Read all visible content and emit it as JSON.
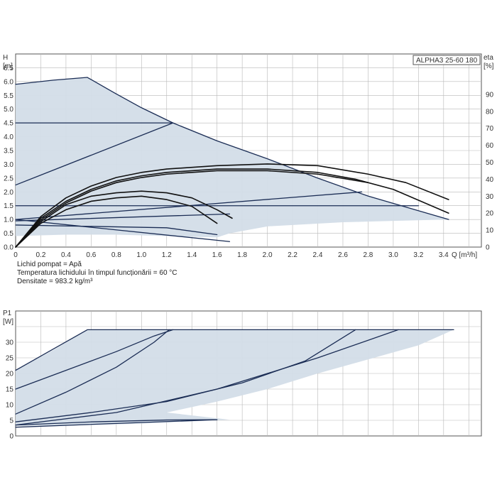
{
  "model_label": "ALPHA3 25-60 180",
  "notes": {
    "liquid": "Lichid pompat = Apă",
    "temperature": "Temperatura lichidului în timpul funcționării = 60 °C",
    "density": "Densitate = 983.2 kg/m³"
  },
  "chart_data": [
    {
      "type": "line",
      "title": "",
      "xlabel": "Q [m³/h]",
      "ylabel_left": [
        "H",
        "[m]"
      ],
      "ylabel_right": [
        "eta",
        "[%]"
      ],
      "xlim": [
        0,
        3.7
      ],
      "ylim": [
        0,
        7
      ],
      "ylim_right": [
        0,
        100
      ],
      "x_ticks": [
        "0",
        "0.2",
        "0.4",
        "0.6",
        "0.8",
        "1.0",
        "1.2",
        "1.4",
        "1.6",
        "1.8",
        "2.0",
        "2.2",
        "2.4",
        "2.6",
        "2.8",
        "3.0",
        "3.2",
        "3.4"
      ],
      "y_ticks": [
        "0.0",
        "0.5",
        "1.0",
        "1.5",
        "2.0",
        "2.5",
        "3.0",
        "3.5",
        "4.0",
        "4.5",
        "5.0",
        "5.5",
        "6.0",
        "6.5"
      ],
      "y_ticks_right": [
        "0",
        "10",
        "20",
        "30",
        "40",
        "50",
        "60",
        "70",
        "80",
        "90"
      ],
      "grid": true,
      "operating_area": [
        [
          0,
          0
        ],
        [
          0,
          5.9
        ],
        [
          0.3,
          6.05
        ],
        [
          0.57,
          6.15
        ],
        [
          0.8,
          5.55
        ],
        [
          1.0,
          5.05
        ],
        [
          1.25,
          4.5
        ],
        [
          1.6,
          3.85
        ],
        [
          2.0,
          3.2
        ],
        [
          2.4,
          2.5
        ],
        [
          2.8,
          1.85
        ],
        [
          3.1,
          1.45
        ],
        [
          3.44,
          1.0
        ],
        [
          3.0,
          0.95
        ],
        [
          2.6,
          0.9
        ],
        [
          2.0,
          0.75
        ],
        [
          1.7,
          0.5
        ],
        [
          1.6,
          0.35
        ],
        [
          1.2,
          0.4
        ],
        [
          0.8,
          0.45
        ],
        [
          0.4,
          0.45
        ],
        [
          0,
          0.4
        ]
      ],
      "series": [
        {
          "role": "max-curve",
          "color": "#1b2d55",
          "x": [
            0,
            0.3,
            0.57,
            0.8,
            1.0,
            1.25,
            1.6,
            2.0,
            2.4,
            2.8,
            3.1,
            3.44
          ],
          "y": [
            5.9,
            6.05,
            6.15,
            5.55,
            5.05,
            4.5,
            3.85,
            3.2,
            2.5,
            1.85,
            1.45,
            1.0
          ]
        },
        {
          "role": "const-pressure",
          "color": "#1b2d55",
          "x": [
            0,
            1.25
          ],
          "y": [
            4.5,
            4.5
          ]
        },
        {
          "role": "prop-pressure",
          "color": "#1b2d55",
          "x": [
            0,
            1.25
          ],
          "y": [
            2.25,
            4.5
          ]
        },
        {
          "role": "const-pressure",
          "color": "#1b2d55",
          "x": [
            0,
            3.2
          ],
          "y": [
            1.5,
            1.5
          ]
        },
        {
          "role": "prop-pressure",
          "color": "#1b2d55",
          "x": [
            0,
            2.75
          ],
          "y": [
            1.0,
            2.0
          ]
        },
        {
          "role": "prop-pressure",
          "color": "#1b2d55",
          "x": [
            0,
            1.7
          ],
          "y": [
            0.95,
            1.2
          ]
        },
        {
          "role": "min-curve",
          "color": "#1b2d55",
          "x": [
            0,
            1.2,
            1.6
          ],
          "y": [
            0.8,
            0.7,
            0.45
          ]
        },
        {
          "role": "min-curve",
          "color": "#1b2d55",
          "x": [
            0,
            1.7
          ],
          "y": [
            1.0,
            0.2
          ]
        },
        {
          "role": "efficiency",
          "color": "#111111",
          "x": [
            0,
            0.2,
            0.4,
            0.6,
            0.8,
            1.0,
            1.2,
            1.6,
            2.0,
            2.4,
            2.8,
            3.1,
            3.44
          ],
          "y": [
            0,
            18,
            29,
            36,
            41,
            44,
            46,
            48,
            49,
            48,
            43,
            38,
            28
          ]
        },
        {
          "role": "efficiency",
          "color": "#111111",
          "x": [
            0,
            0.2,
            0.4,
            0.6,
            0.8,
            1.0,
            1.2,
            1.6,
            2.0,
            2.4,
            2.7,
            3.0,
            3.44
          ],
          "y": [
            0,
            17,
            27,
            34,
            39,
            42,
            44,
            46,
            46,
            44,
            40,
            34,
            20
          ]
        },
        {
          "role": "efficiency",
          "color": "#111111",
          "x": [
            0,
            0.2,
            0.4,
            0.6,
            0.8,
            1.0,
            1.2,
            1.6,
            2.0,
            2.4,
            2.8
          ],
          "y": [
            0,
            16,
            26,
            33,
            38,
            41,
            43,
            45,
            45,
            43,
            38
          ]
        },
        {
          "role": "efficiency",
          "color": "#111111",
          "x": [
            0,
            0.2,
            0.4,
            0.6,
            0.8,
            1.0,
            1.2,
            1.4,
            1.6,
            1.72
          ],
          "y": [
            0,
            15,
            25,
            30,
            32,
            33,
            32,
            29,
            22,
            17
          ]
        },
        {
          "role": "efficiency",
          "color": "#111111",
          "x": [
            0,
            0.2,
            0.4,
            0.6,
            0.8,
            1.0,
            1.2,
            1.4,
            1.6
          ],
          "y": [
            0,
            14,
            22,
            27,
            29,
            30,
            28,
            24,
            14
          ]
        }
      ]
    },
    {
      "type": "line",
      "title": "",
      "xlabel": "",
      "ylabel_left": [
        "P1",
        "[W]"
      ],
      "xlim": [
        0,
        3.7
      ],
      "ylim": [
        0,
        40
      ],
      "x_ticks": [],
      "y_ticks": [
        "0",
        "5",
        "10",
        "15",
        "20",
        "25",
        "30"
      ],
      "grid": true,
      "operating_area": [
        [
          0,
          3.2
        ],
        [
          0,
          21
        ],
        [
          0.3,
          27.5
        ],
        [
          0.57,
          34
        ],
        [
          3.48,
          34
        ],
        [
          3.2,
          29
        ],
        [
          2.8,
          24.5
        ],
        [
          2.4,
          20
        ],
        [
          2.0,
          15
        ],
        [
          1.6,
          11
        ],
        [
          1.2,
          7.5
        ],
        [
          1.7,
          5.2
        ],
        [
          0.9,
          3.8
        ],
        [
          0.4,
          3.3
        ]
      ],
      "series": [
        {
          "role": "max-curve",
          "color": "#1b2d55",
          "x": [
            0,
            0.57,
            3.48
          ],
          "y": [
            21,
            34,
            34
          ]
        },
        {
          "role": "curve",
          "color": "#1b2d55",
          "x": [
            0,
            0.4,
            0.8,
            1.1,
            1.25
          ],
          "y": [
            15,
            21,
            27,
            32,
            34
          ]
        },
        {
          "role": "curve",
          "color": "#1b2d55",
          "x": [
            0,
            0.4,
            0.8,
            1.1,
            1.22
          ],
          "y": [
            7,
            14,
            22,
            30,
            34
          ]
        },
        {
          "role": "curve",
          "color": "#1b2d55",
          "x": [
            0,
            0.6,
            1.2,
            1.8,
            2.3,
            2.7
          ],
          "y": [
            4.5,
            7.5,
            11,
            17,
            24,
            34
          ]
        },
        {
          "role": "curve",
          "color": "#1b2d55",
          "x": [
            0,
            0.8,
            1.6,
            2.4,
            3.04
          ],
          "y": [
            3.5,
            7.5,
            15,
            25,
            34
          ]
        },
        {
          "role": "min-curve",
          "color": "#1b2d55",
          "x": [
            0,
            0.6,
            1.2,
            1.6
          ],
          "y": [
            3.5,
            4.5,
            5.1,
            5.2
          ]
        },
        {
          "role": "min-curve",
          "color": "#1b2d55",
          "x": [
            0,
            1.6
          ],
          "y": [
            2.8,
            5.2
          ]
        }
      ]
    }
  ]
}
